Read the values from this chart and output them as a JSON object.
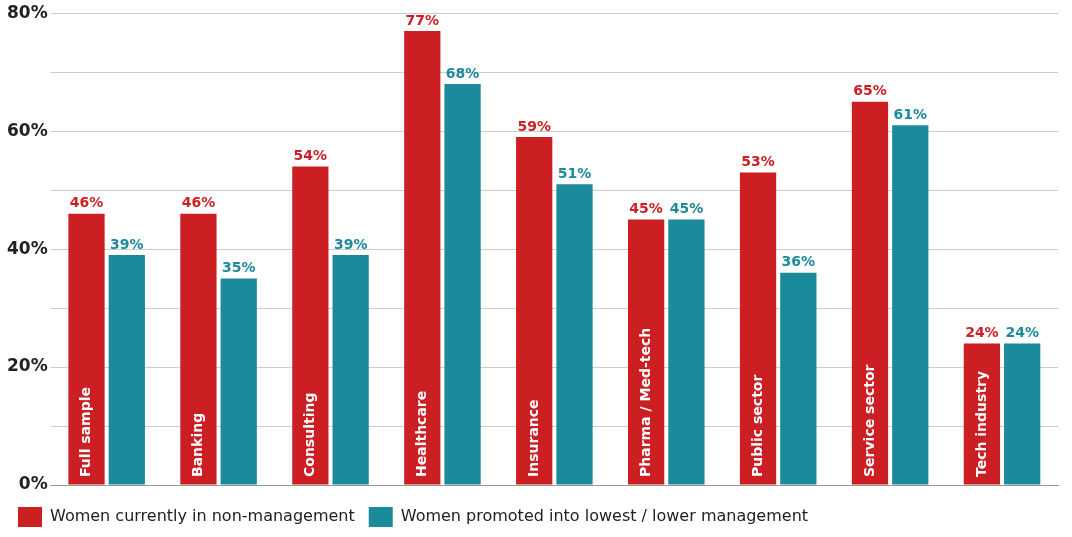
{
  "chart_data": {
    "type": "bar",
    "categories": [
      "Full sample",
      "Banking",
      "Consulting",
      "Healthcare",
      "Insurance",
      "Pharma / Med-tech",
      "Public sector",
      "Service sector",
      "Tech industry"
    ],
    "series": [
      {
        "name": "Women currently in non-management",
        "color": "#cc1f24",
        "values": [
          46,
          46,
          54,
          77,
          59,
          45,
          53,
          65,
          24
        ],
        "value_labels": [
          "46%",
          "46%",
          "54%",
          "77%",
          "59%",
          "45%",
          "53%",
          "65%",
          "24%"
        ]
      },
      {
        "name": "Women promoted into lowest / lower management",
        "color": "#1b8a9a",
        "values": [
          39,
          35,
          39,
          68,
          51,
          45,
          36,
          61,
          24
        ],
        "value_labels": [
          "39%",
          "35%",
          "39%",
          "68%",
          "51%",
          "45%",
          "36%",
          "61%",
          "24%"
        ]
      }
    ],
    "ylim": [
      0,
      80
    ],
    "yticks": [
      {
        "value": 0,
        "label": "0%"
      },
      {
        "value": 10,
        "label": null
      },
      {
        "value": 20,
        "label": "20%"
      },
      {
        "value": 30,
        "label": null
      },
      {
        "value": 40,
        "label": "40%"
      },
      {
        "value": 50,
        "label": null
      },
      {
        "value": 60,
        "label": "60%"
      },
      {
        "value": 70,
        "label": null
      },
      {
        "value": 80,
        "label": "80%"
      }
    ],
    "grid": "y",
    "legend": "bottom left"
  }
}
